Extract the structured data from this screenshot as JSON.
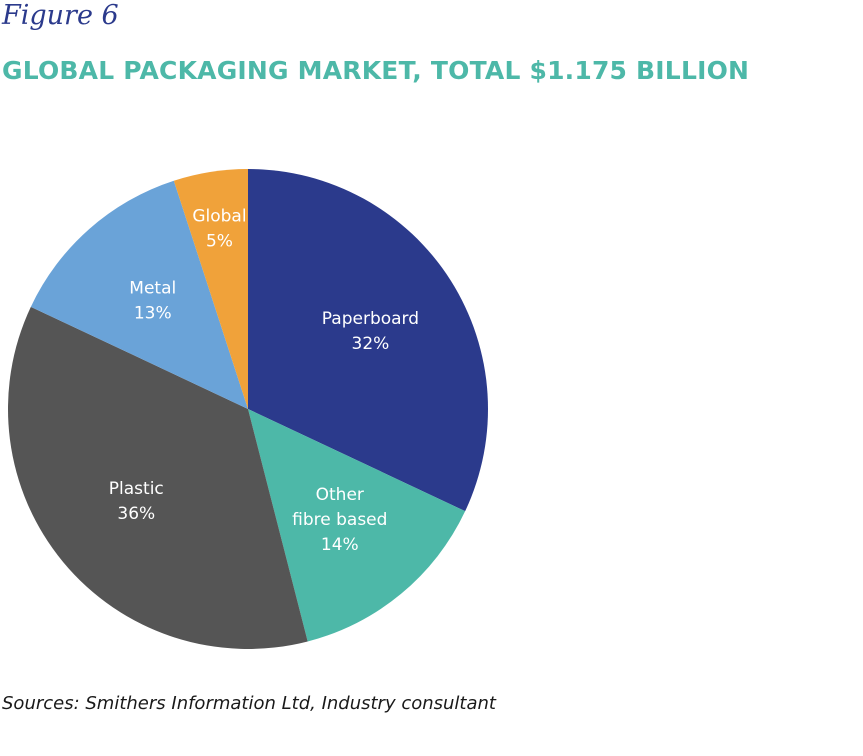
{
  "figure_label": "Figure 6",
  "source_note": "Sources: Smithers Information Ltd, Industry consultant",
  "chart_data": {
    "type": "pie",
    "title": "GLOBAL PACKAGING MARKET, TOTAL $1.175 BILLION",
    "slices": [
      {
        "label_lines": [
          "Paperboard"
        ],
        "percent_label": "32%",
        "value": 32,
        "color": "#2b3a8c"
      },
      {
        "label_lines": [
          "Other",
          "fibre based"
        ],
        "percent_label": "14%",
        "value": 14,
        "color": "#4db8a8"
      },
      {
        "label_lines": [
          "Plastic"
        ],
        "percent_label": "36%",
        "value": 36,
        "color": "#555555"
      },
      {
        "label_lines": [
          "Metal"
        ],
        "percent_label": "13%",
        "value": 13,
        "color": "#6aa3d8"
      },
      {
        "label_lines": [
          "Global"
        ],
        "percent_label": "5%",
        "value": 5,
        "color": "#f0a23a"
      }
    ]
  }
}
